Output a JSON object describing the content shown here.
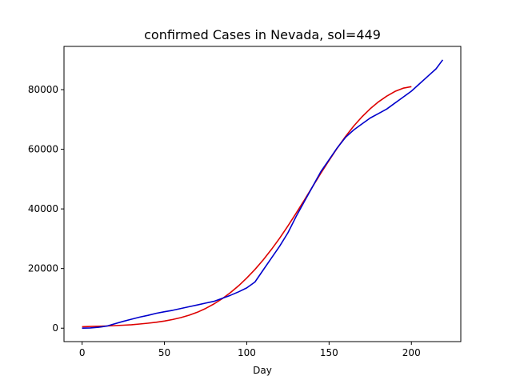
{
  "chart_data": {
    "type": "line",
    "title": "confirmed Cases in Nevada, sol=449",
    "xlabel": "Day",
    "ylabel": "",
    "xlim": [
      -11,
      230
    ],
    "ylim": [
      -4500,
      94500
    ],
    "xticks": [
      0,
      50,
      100,
      150,
      200
    ],
    "yticks": [
      0,
      20000,
      40000,
      60000,
      80000
    ],
    "grid": false,
    "series": [
      {
        "color": "#0000cc",
        "x": [
          0,
          5,
          10,
          15,
          20,
          25,
          30,
          35,
          40,
          45,
          50,
          55,
          60,
          65,
          70,
          75,
          80,
          85,
          90,
          95,
          100,
          105,
          110,
          115,
          120,
          125,
          130,
          135,
          140,
          145,
          150,
          155,
          160,
          165,
          170,
          175,
          180,
          185,
          190,
          195,
          200,
          205,
          210,
          215,
          219
        ],
        "y": [
          0,
          100,
          300,
          700,
          1500,
          2300,
          3000,
          3700,
          4300,
          5000,
          5500,
          6000,
          6600,
          7200,
          7800,
          8400,
          9000,
          10000,
          11000,
          12200,
          13500,
          15500,
          19500,
          23500,
          27500,
          32000,
          37500,
          42500,
          47500,
          52500,
          56500,
          60500,
          64000,
          66500,
          68500,
          70500,
          72000,
          73500,
          75500,
          77500,
          79500,
          82000,
          84500,
          87000,
          90000
        ]
      },
      {
        "color": "#dd0000",
        "x": [
          0,
          5,
          10,
          15,
          20,
          25,
          30,
          35,
          40,
          45,
          50,
          55,
          60,
          65,
          70,
          75,
          80,
          85,
          90,
          95,
          100,
          105,
          110,
          115,
          120,
          125,
          130,
          135,
          140,
          145,
          150,
          155,
          160,
          165,
          170,
          175,
          180,
          185,
          190,
          195,
          200
        ],
        "y": [
          500,
          560,
          640,
          740,
          860,
          1000,
          1170,
          1400,
          1660,
          1990,
          2400,
          2900,
          3550,
          4350,
          5350,
          6600,
          8100,
          9850,
          11900,
          14200,
          16800,
          19700,
          22900,
          26400,
          30200,
          34300,
          38600,
          43000,
          47500,
          52000,
          56300,
          60400,
          64300,
          67800,
          70900,
          73600,
          75900,
          77800,
          79400,
          80500,
          81000
        ]
      }
    ]
  }
}
